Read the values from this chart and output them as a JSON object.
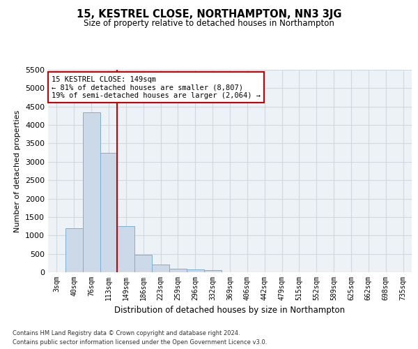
{
  "title": "15, KESTREL CLOSE, NORTHAMPTON, NN3 3JG",
  "subtitle": "Size of property relative to detached houses in Northampton",
  "xlabel": "Distribution of detached houses by size in Northampton",
  "ylabel": "Number of detached properties",
  "footer_line1": "Contains HM Land Registry data © Crown copyright and database right 2024.",
  "footer_line2": "Contains public sector information licensed under the Open Government Licence v3.0.",
  "annotation_title": "15 KESTREL CLOSE: 149sqm",
  "annotation_line1": "← 81% of detached houses are smaller (8,807)",
  "annotation_line2": "19% of semi-detached houses are larger (2,064) →",
  "bar_color": "#ccd9e8",
  "bar_edge_color": "#7bafd4",
  "vline_color": "#cc0000",
  "annotation_box_edgecolor": "#cc0000",
  "grid_color": "#d0d8e0",
  "background_color": "#edf2f7",
  "categories": [
    "3sqm",
    "40sqm",
    "76sqm",
    "113sqm",
    "149sqm",
    "186sqm",
    "223sqm",
    "259sqm",
    "296sqm",
    "332sqm",
    "369sqm",
    "406sqm",
    "442sqm",
    "479sqm",
    "515sqm",
    "552sqm",
    "589sqm",
    "625sqm",
    "662sqm",
    "698sqm",
    "735sqm"
  ],
  "values": [
    0,
    1200,
    4350,
    3250,
    1250,
    475,
    200,
    100,
    75,
    50,
    0,
    0,
    0,
    0,
    0,
    0,
    0,
    0,
    0,
    0,
    0
  ],
  "ylim": [
    0,
    5500
  ],
  "yticks": [
    0,
    500,
    1000,
    1500,
    2000,
    2500,
    3000,
    3500,
    4000,
    4500,
    5000,
    5500
  ],
  "vline_x_index": 3.5,
  "figsize": [
    6.0,
    5.0
  ],
  "dpi": 100
}
